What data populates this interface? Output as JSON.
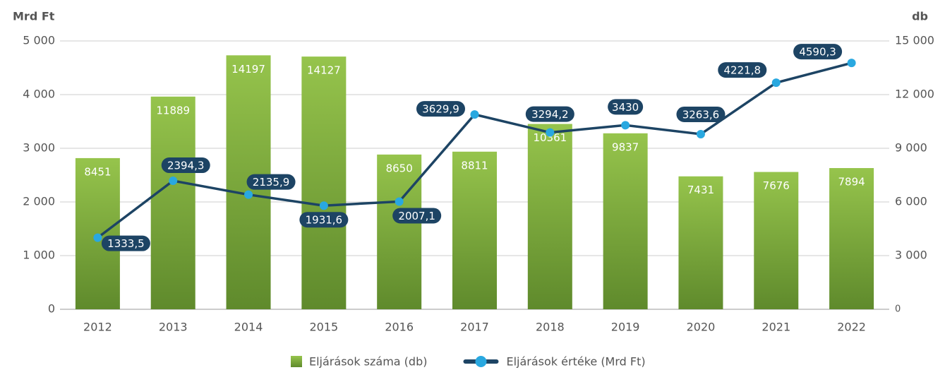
{
  "chart_data": {
    "type": "bar-line",
    "y_label": "Mrd Ft",
    "y2_label": "db",
    "categories": [
      "2012",
      "2013",
      "2014",
      "2015",
      "2016",
      "2017",
      "2018",
      "2019",
      "2020",
      "2021",
      "2022"
    ],
    "series": [
      {
        "name": "Eljárások száma (db)",
        "type": "bar",
        "axis": "y2",
        "color": "#7ea83c",
        "values": [
          8451,
          11889,
          14197,
          14127,
          8650,
          8811,
          10361,
          9837,
          7431,
          7676,
          7894
        ]
      },
      {
        "name": "Eljárások értéke (Mrd Ft)",
        "type": "line",
        "axis": "y",
        "color": "#1d4464",
        "marker_color": "#29a8e0",
        "values": [
          1333.5,
          2394.3,
          2135.9,
          1931.6,
          2007.1,
          3629.9,
          3294.2,
          3430,
          3263.6,
          4221.8,
          4590.3
        ],
        "value_labels": [
          "1333,5",
          "2394,3",
          "2135,9",
          "1931,6",
          "2007,1",
          "3629,9",
          "3294,2",
          "3430",
          "3263,6",
          "4221,8",
          "4590,3"
        ]
      }
    ],
    "ylim": [
      0,
      5000
    ],
    "yticks": [
      0,
      {
        "value": 1000,
        "label": "1 000"
      },
      {
        "value": 2000,
        "label": "2 000"
      },
      {
        "value": 3000,
        "label": "3 000"
      },
      {
        "value": 4000,
        "label": "4 000"
      },
      {
        "value": 5000,
        "label": "5 000"
      }
    ],
    "y2lim": [
      0,
      15000
    ],
    "y2ticks": [
      0,
      {
        "value": 3000,
        "label": "3 000"
      },
      {
        "value": 6000,
        "label": "6 000"
      },
      {
        "value": 9000,
        "label": "9 000"
      },
      {
        "value": 12000,
        "label": "12 000"
      },
      {
        "value": 15000,
        "label": "15 000"
      }
    ],
    "grid": true,
    "legend": "bottom"
  }
}
